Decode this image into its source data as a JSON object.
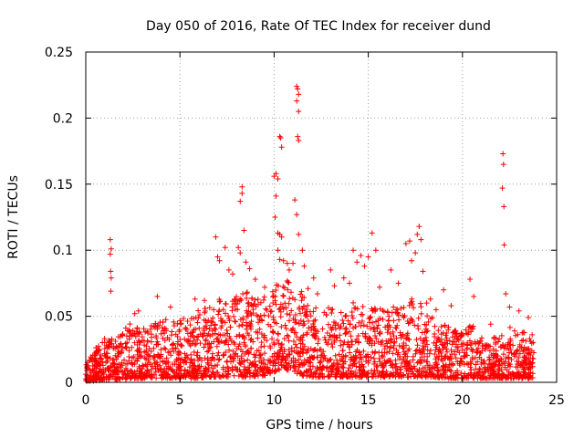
{
  "chart_data": {
    "type": "scatter",
    "title": "Day 050 of 2016, Rate Of TEC Index for receiver dund",
    "xlabel": "GPS time / hours",
    "ylabel": "ROTI / TECUs",
    "xlim": [
      0,
      25
    ],
    "ylim": [
      0,
      0.25
    ],
    "xticks": [
      0,
      5,
      10,
      15,
      20,
      25
    ],
    "yticks": [
      0,
      0.05,
      0.1,
      0.15,
      0.2,
      0.25
    ],
    "xtick_labels": [
      "0",
      "5",
      "10",
      "15",
      "20",
      "25"
    ],
    "ytick_labels": [
      "0",
      "0.05",
      "0.1",
      "0.15",
      "0.2",
      "0.25"
    ],
    "grid": true,
    "marker": "+",
    "color": "#ff0000",
    "series": [
      {
        "name": "ROTI",
        "points": [
          [
            1.3,
            0.108
          ],
          [
            1.35,
            0.101
          ],
          [
            1.3,
            0.097
          ],
          [
            1.32,
            0.084
          ],
          [
            1.35,
            0.079
          ],
          [
            1.33,
            0.069
          ],
          [
            2.6,
            0.052
          ],
          [
            2.8,
            0.054
          ],
          [
            3.8,
            0.065
          ],
          [
            4.5,
            0.057
          ],
          [
            5.8,
            0.063
          ],
          [
            6.3,
            0.062
          ],
          [
            6.9,
            0.11
          ],
          [
            7.0,
            0.095
          ],
          [
            7.1,
            0.092
          ],
          [
            7.4,
            0.102
          ],
          [
            7.6,
            0.085
          ],
          [
            7.8,
            0.082
          ],
          [
            8.1,
            0.102
          ],
          [
            8.2,
            0.098
          ],
          [
            8.2,
            0.137
          ],
          [
            8.3,
            0.148
          ],
          [
            8.3,
            0.143
          ],
          [
            8.4,
            0.115
          ],
          [
            8.5,
            0.091
          ],
          [
            8.7,
            0.086
          ],
          [
            9.0,
            0.078
          ],
          [
            9.5,
            0.072
          ],
          [
            10.0,
            0.156
          ],
          [
            10.1,
            0.158
          ],
          [
            10.2,
            0.154
          ],
          [
            10.1,
            0.141
          ],
          [
            10.05,
            0.125
          ],
          [
            10.3,
            0.186
          ],
          [
            10.35,
            0.185
          ],
          [
            10.4,
            0.178
          ],
          [
            10.2,
            0.113
          ],
          [
            10.3,
            0.112
          ],
          [
            10.4,
            0.11
          ],
          [
            10.2,
            0.1
          ],
          [
            10.3,
            0.093
          ],
          [
            10.5,
            0.092
          ],
          [
            10.7,
            0.09
          ],
          [
            10.8,
            0.085
          ],
          [
            11.0,
            0.09
          ],
          [
            11.2,
            0.224
          ],
          [
            11.25,
            0.222
          ],
          [
            11.3,
            0.218
          ],
          [
            11.2,
            0.213
          ],
          [
            11.3,
            0.205
          ],
          [
            11.25,
            0.186
          ],
          [
            11.3,
            0.183
          ],
          [
            11.1,
            0.138
          ],
          [
            11.2,
            0.127
          ],
          [
            11.3,
            0.112
          ],
          [
            11.5,
            0.1
          ],
          [
            11.6,
            0.088
          ],
          [
            11.8,
            0.071
          ],
          [
            12.1,
            0.079
          ],
          [
            12.3,
            0.067
          ],
          [
            13.0,
            0.085
          ],
          [
            13.2,
            0.073
          ],
          [
            13.7,
            0.079
          ],
          [
            14.0,
            0.075
          ],
          [
            14.2,
            0.1
          ],
          [
            14.4,
            0.091
          ],
          [
            14.6,
            0.096
          ],
          [
            14.8,
            0.088
          ],
          [
            15.0,
            0.095
          ],
          [
            15.2,
            0.113
          ],
          [
            15.4,
            0.1
          ],
          [
            15.6,
            0.072
          ],
          [
            16.2,
            0.085
          ],
          [
            16.6,
            0.075
          ],
          [
            17.0,
            0.105
          ],
          [
            17.2,
            0.107
          ],
          [
            17.3,
            0.092
          ],
          [
            17.5,
            0.098
          ],
          [
            17.6,
            0.112
          ],
          [
            17.7,
            0.118
          ],
          [
            17.8,
            0.108
          ],
          [
            17.9,
            0.084
          ],
          [
            18.1,
            0.06
          ],
          [
            18.3,
            0.063
          ],
          [
            18.6,
            0.055
          ],
          [
            19.0,
            0.07
          ],
          [
            19.4,
            0.058
          ],
          [
            20.4,
            0.078
          ],
          [
            20.6,
            0.065
          ],
          [
            21.5,
            0.044
          ],
          [
            22.15,
            0.173
          ],
          [
            22.18,
            0.165
          ],
          [
            22.12,
            0.147
          ],
          [
            22.2,
            0.133
          ],
          [
            22.22,
            0.104
          ],
          [
            22.3,
            0.067
          ],
          [
            22.5,
            0.057
          ],
          [
            23.0,
            0.054
          ],
          [
            23.5,
            0.049
          ],
          [
            23.7,
            0.036
          ]
        ],
        "envelope": [
          [
            0.0,
            0.013,
            0.001
          ],
          [
            0.5,
            0.026,
            0.001
          ],
          [
            1.0,
            0.034,
            0.002
          ],
          [
            1.5,
            0.033,
            0.002
          ],
          [
            2.0,
            0.04,
            0.002
          ],
          [
            2.5,
            0.046,
            0.003
          ],
          [
            3.0,
            0.041,
            0.003
          ],
          [
            3.5,
            0.046,
            0.003
          ],
          [
            4.0,
            0.048,
            0.003
          ],
          [
            4.5,
            0.047,
            0.003
          ],
          [
            5.0,
            0.048,
            0.003
          ],
          [
            5.5,
            0.051,
            0.003
          ],
          [
            6.0,
            0.055,
            0.003
          ],
          [
            6.5,
            0.058,
            0.004
          ],
          [
            7.0,
            0.062,
            0.004
          ],
          [
            7.5,
            0.066,
            0.004
          ],
          [
            8.0,
            0.066,
            0.004
          ],
          [
            8.5,
            0.07,
            0.004
          ],
          [
            9.0,
            0.066,
            0.004
          ],
          [
            9.5,
            0.066,
            0.005
          ],
          [
            10.0,
            0.072,
            0.008
          ],
          [
            10.5,
            0.08,
            0.01
          ],
          [
            11.0,
            0.076,
            0.008
          ],
          [
            11.5,
            0.068,
            0.005
          ],
          [
            12.0,
            0.06,
            0.004
          ],
          [
            12.5,
            0.056,
            0.004
          ],
          [
            13.0,
            0.058,
            0.004
          ],
          [
            13.5,
            0.054,
            0.004
          ],
          [
            14.0,
            0.058,
            0.004
          ],
          [
            14.5,
            0.064,
            0.004
          ],
          [
            15.0,
            0.062,
            0.004
          ],
          [
            15.5,
            0.058,
            0.004
          ],
          [
            16.0,
            0.054,
            0.004
          ],
          [
            16.5,
            0.06,
            0.004
          ],
          [
            17.0,
            0.062,
            0.004
          ],
          [
            17.5,
            0.066,
            0.004
          ],
          [
            18.0,
            0.056,
            0.004
          ],
          [
            18.5,
            0.05,
            0.004
          ],
          [
            19.0,
            0.044,
            0.003
          ],
          [
            19.5,
            0.04,
            0.003
          ],
          [
            20.0,
            0.038,
            0.003
          ],
          [
            20.5,
            0.044,
            0.003
          ],
          [
            21.0,
            0.036,
            0.003
          ],
          [
            21.5,
            0.034,
            0.003
          ],
          [
            22.0,
            0.036,
            0.003
          ],
          [
            22.5,
            0.042,
            0.003
          ],
          [
            23.0,
            0.04,
            0.003
          ],
          [
            23.5,
            0.036,
            0.003
          ],
          [
            23.8,
            0.03,
            0.003
          ]
        ]
      }
    ]
  }
}
